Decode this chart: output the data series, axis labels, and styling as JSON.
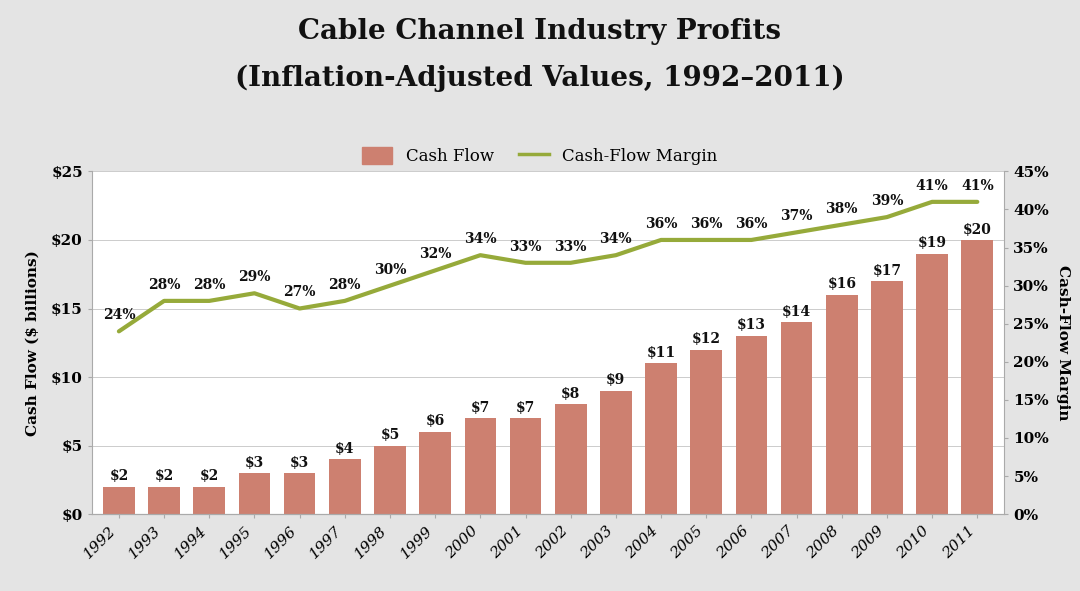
{
  "title_line1": "Cable Channel Industry Profits",
  "title_line2": "(Inflation-Adjusted Values, 1992–2011)",
  "years": [
    1992,
    1993,
    1994,
    1995,
    1996,
    1997,
    1998,
    1999,
    2000,
    2001,
    2002,
    2003,
    2004,
    2005,
    2006,
    2007,
    2008,
    2009,
    2010,
    2011
  ],
  "cash_flow": [
    2,
    2,
    2,
    3,
    3,
    4,
    5,
    6,
    7,
    7,
    8,
    9,
    11,
    12,
    13,
    14,
    16,
    17,
    19,
    20
  ],
  "cash_flow_margin": [
    24,
    28,
    28,
    29,
    27,
    28,
    30,
    32,
    34,
    33,
    33,
    34,
    36,
    36,
    36,
    37,
    38,
    39,
    41,
    41
  ],
  "bar_color": "#cd8070",
  "line_color": "#96aa3a",
  "ylabel_left": "Cash Flow ($ billions)",
  "ylabel_right": "Cash-Flow Margin",
  "ylim_left": [
    0,
    25
  ],
  "ylim_right": [
    0,
    45
  ],
  "yticks_left": [
    0,
    5,
    10,
    15,
    20,
    25
  ],
  "yticks_right": [
    0,
    5,
    10,
    15,
    20,
    25,
    30,
    35,
    40,
    45
  ],
  "background_color": "#e4e4e4",
  "plot_background_color": "#ffffff",
  "legend_cash_flow": "Cash Flow",
  "legend_margin": "Cash-Flow Margin",
  "title_fontsize": 20,
  "axis_label_fontsize": 11,
  "tick_fontsize": 11,
  "annotation_fontsize": 10
}
